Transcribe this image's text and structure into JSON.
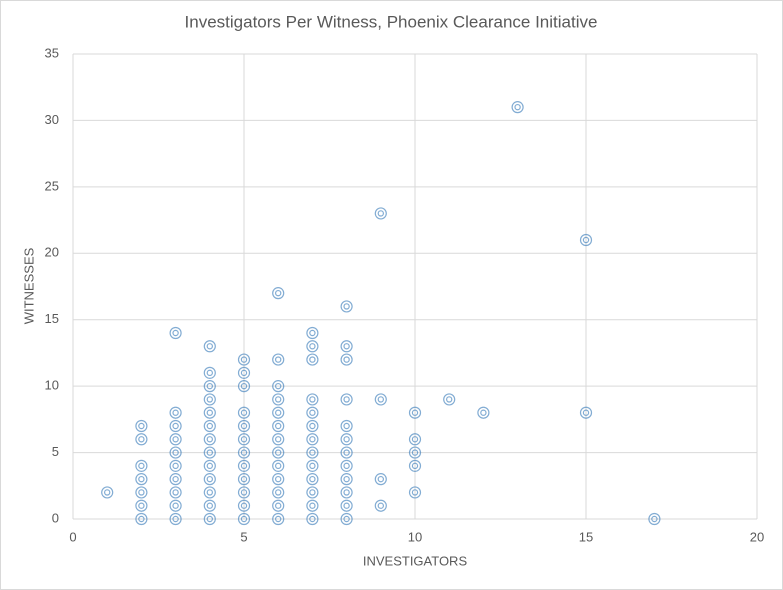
{
  "chart_data": {
    "type": "scatter",
    "title": "Investigators Per Witness, Phoenix Clearance Initiative",
    "x_label": "INVESTIGATORS",
    "y_label": "WITNESSES",
    "x": [
      1,
      2,
      2,
      2,
      2,
      2,
      2,
      2,
      3,
      3,
      3,
      3,
      3,
      3,
      3,
      3,
      3,
      3,
      4,
      4,
      4,
      4,
      4,
      4,
      4,
      4,
      4,
      4,
      4,
      4,
      4,
      5,
      5,
      5,
      5,
      5,
      5,
      5,
      5,
      5,
      5,
      5,
      5,
      6,
      6,
      6,
      6,
      6,
      6,
      6,
      6,
      6,
      6,
      6,
      6,
      6,
      7,
      7,
      7,
      7,
      7,
      7,
      7,
      7,
      7,
      7,
      7,
      7,
      7,
      8,
      8,
      8,
      8,
      8,
      8,
      8,
      8,
      8,
      8,
      8,
      8,
      9,
      9,
      9,
      9,
      10,
      10,
      10,
      10,
      10,
      11,
      12,
      13,
      15,
      15,
      17
    ],
    "y": [
      2,
      0,
      1,
      2,
      3,
      4,
      6,
      7,
      0,
      1,
      2,
      3,
      4,
      5,
      6,
      7,
      8,
      14,
      0,
      1,
      2,
      3,
      4,
      5,
      6,
      7,
      8,
      9,
      10,
      11,
      13,
      0,
      1,
      2,
      3,
      4,
      5,
      6,
      7,
      8,
      10,
      11,
      12,
      0,
      1,
      2,
      3,
      4,
      5,
      6,
      7,
      8,
      9,
      10,
      12,
      17,
      0,
      1,
      2,
      3,
      4,
      5,
      6,
      7,
      8,
      9,
      12,
      13,
      14,
      0,
      1,
      2,
      3,
      4,
      5,
      6,
      7,
      9,
      12,
      13,
      16,
      1,
      3,
      9,
      23,
      2,
      4,
      5,
      6,
      8,
      9,
      8,
      31,
      8,
      21,
      0
    ],
    "color": "#2e75b6",
    "xlim": [
      0,
      20
    ],
    "ylim": [
      0,
      35
    ],
    "xticks": [
      0,
      5,
      10,
      15,
      20
    ],
    "yticks": [
      0,
      5,
      10,
      15,
      20,
      25,
      30,
      35
    ],
    "grid": true
  }
}
